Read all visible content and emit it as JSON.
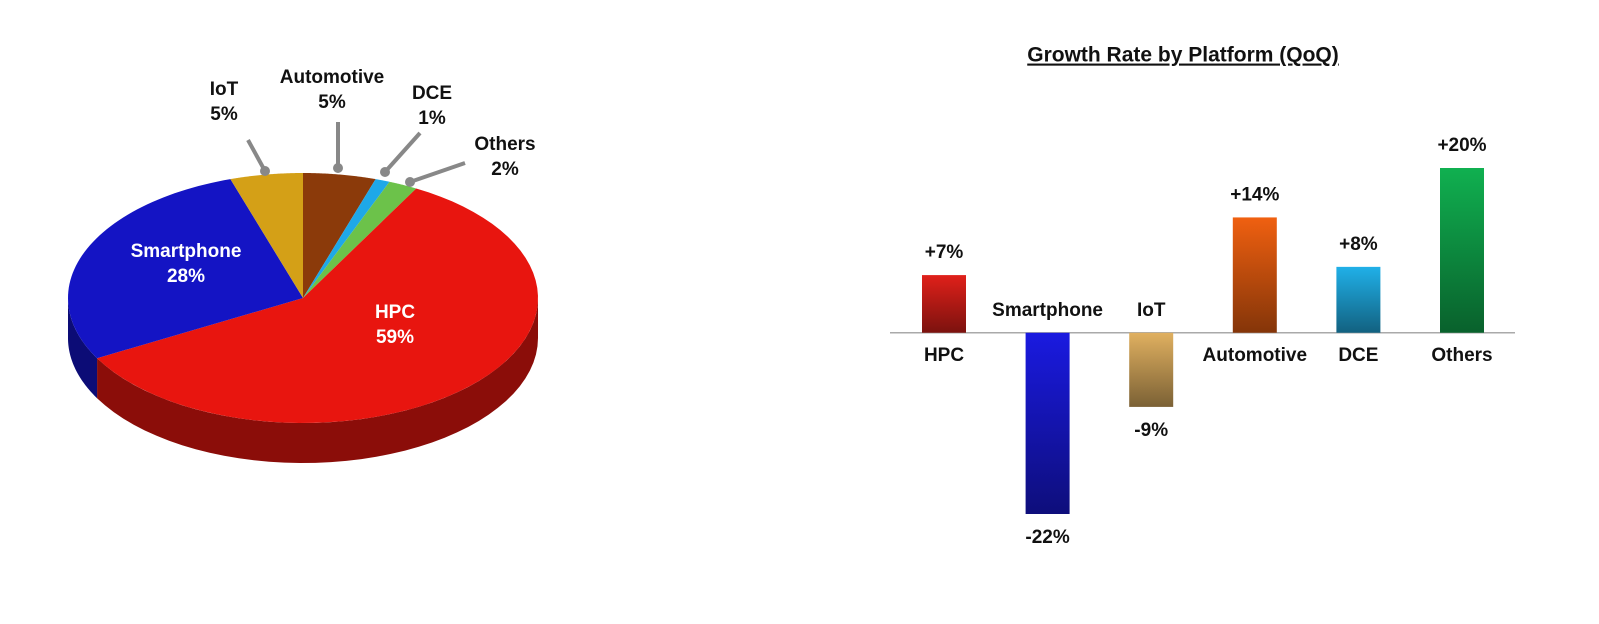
{
  "chart_data": [
    {
      "type": "pie",
      "categories": [
        "Automotive",
        "DCE",
        "Others",
        "HPC",
        "Smartphone",
        "IoT"
      ],
      "values": [
        5,
        1,
        2,
        59,
        28,
        5
      ],
      "value_labels": [
        "5%",
        "1%",
        "2%",
        "59%",
        "28%",
        "5%"
      ],
      "colors": [
        "#8b3a0a",
        "#1ea8e8",
        "#6cc24a",
        "#e8150f",
        "#1414c4",
        "#d4a017"
      ]
    },
    {
      "type": "bar",
      "title": "Growth Rate by Platform (QoQ)",
      "categories": [
        "HPC",
        "Smartphone",
        "IoT",
        "Automotive",
        "DCE",
        "Others"
      ],
      "values": [
        7,
        -22,
        -9,
        14,
        8,
        20
      ],
      "value_labels": [
        "+7%",
        "-22%",
        "-9%",
        "+14%",
        "+8%",
        "+20%"
      ],
      "colors": [
        "#e0201a",
        "#1a1ae0",
        "#e0b060",
        "#f06010",
        "#20b0e8",
        "#10b050"
      ]
    }
  ]
}
